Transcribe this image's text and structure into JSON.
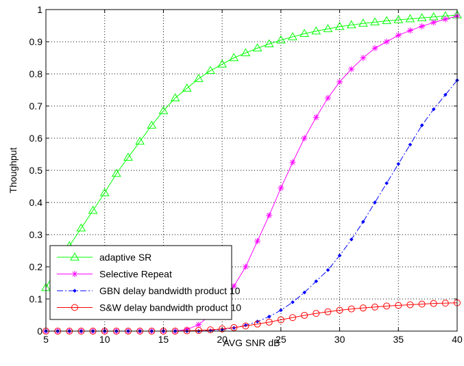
{
  "chart_data": {
    "type": "line",
    "title": "",
    "xlabel": "AVG SNR dB",
    "ylabel": "Thoughput",
    "xlim": [
      5,
      40
    ],
    "ylim": [
      0,
      1
    ],
    "xticks": [
      5,
      10,
      15,
      20,
      25,
      30,
      35,
      40
    ],
    "yticks": [
      0,
      0.1,
      0.2,
      0.3,
      0.4,
      0.5,
      0.6,
      0.7,
      0.8,
      0.9,
      1
    ],
    "ytick_labels": [
      "0",
      "0.1",
      "0.2",
      "0.3",
      "0.4",
      "0.5",
      "0.6",
      "0.7",
      "0.8",
      "0.9",
      "1"
    ],
    "grid": true,
    "legend_position": "bottom-left",
    "x": [
      5,
      6,
      7,
      8,
      9,
      10,
      11,
      12,
      13,
      14,
      15,
      16,
      17,
      18,
      19,
      20,
      21,
      22,
      23,
      24,
      25,
      26,
      27,
      28,
      29,
      30,
      31,
      32,
      33,
      34,
      35,
      36,
      37,
      38,
      39,
      40
    ],
    "series": [
      {
        "name": "adaptive SR",
        "color": "#00ff00",
        "marker": "triangle",
        "linestyle": "solid",
        "values": [
          0.135,
          0.2,
          0.265,
          0.32,
          0.375,
          0.43,
          0.49,
          0.54,
          0.59,
          0.64,
          0.685,
          0.725,
          0.755,
          0.785,
          0.81,
          0.83,
          0.85,
          0.865,
          0.88,
          0.893,
          0.905,
          0.915,
          0.925,
          0.933,
          0.94,
          0.947,
          0.952,
          0.957,
          0.961,
          0.965,
          0.968,
          0.971,
          0.974,
          0.977,
          0.98,
          0.983
        ]
      },
      {
        "name": "Selective Repeat",
        "color": "#ff00ff",
        "marker": "star",
        "linestyle": "solid",
        "values": [
          0,
          0,
          0,
          0,
          0,
          0,
          0,
          0,
          0,
          0,
          0,
          0,
          0.005,
          0.02,
          0.05,
          0.09,
          0.14,
          0.2,
          0.28,
          0.36,
          0.445,
          0.525,
          0.6,
          0.665,
          0.725,
          0.775,
          0.815,
          0.85,
          0.88,
          0.9,
          0.92,
          0.935,
          0.948,
          0.96,
          0.97,
          0.98
        ]
      },
      {
        "name": "GBN delay bandwidth product 10",
        "color": "#0000ff",
        "marker": "dot",
        "linestyle": "dashdot",
        "values": [
          0,
          0,
          0,
          0,
          0,
          0,
          0,
          0,
          0,
          0,
          0,
          0,
          0,
          0,
          0.002,
          0.005,
          0.01,
          0.018,
          0.03,
          0.045,
          0.065,
          0.09,
          0.12,
          0.155,
          0.19,
          0.235,
          0.285,
          0.34,
          0.4,
          0.46,
          0.52,
          0.58,
          0.64,
          0.69,
          0.735,
          0.78
        ]
      },
      {
        "name": "S&W delay bandwidth product 10",
        "color": "#ff0000",
        "marker": "circle",
        "linestyle": "solid",
        "values": [
          0,
          0,
          0,
          0,
          0,
          0,
          0,
          0,
          0,
          0,
          0,
          0,
          0.001,
          0.002,
          0.004,
          0.007,
          0.011,
          0.016,
          0.022,
          0.028,
          0.035,
          0.042,
          0.049,
          0.055,
          0.06,
          0.065,
          0.069,
          0.072,
          0.075,
          0.078,
          0.08,
          0.082,
          0.084,
          0.086,
          0.087,
          0.088
        ]
      }
    ]
  }
}
